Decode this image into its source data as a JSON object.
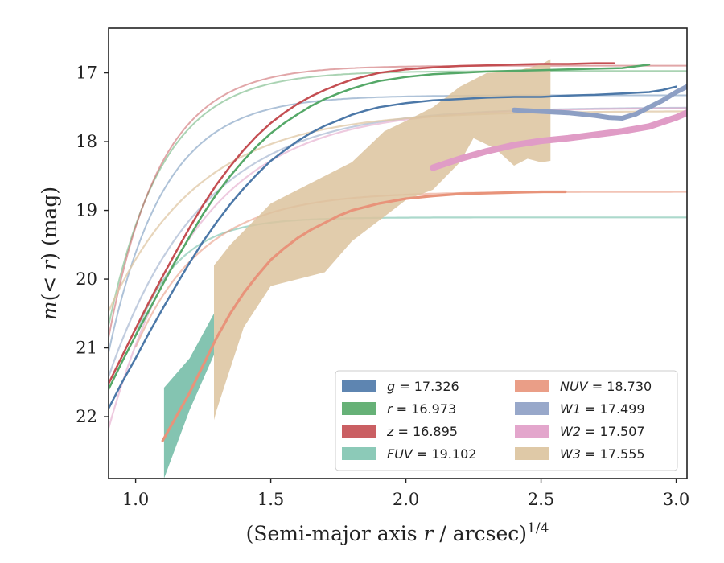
{
  "chart_data": {
    "type": "line",
    "xlabel": "(Semi-major axis r / arcsec)^{1/4}",
    "ylabel": "m(<r) (mag)",
    "xlim": [
      0.9,
      3.04
    ],
    "ylim": [
      22.9,
      16.35
    ],
    "y_inverted": true,
    "grid": false,
    "legend_position": "lower-right",
    "x_ticks": [
      {
        "value": 1.0,
        "label": "1.0"
      },
      {
        "value": 1.5,
        "label": "1.5"
      },
      {
        "value": 2.0,
        "label": "2.0"
      },
      {
        "value": 2.5,
        "label": "2.5"
      },
      {
        "value": 3.0,
        "label": "3.0"
      }
    ],
    "y_ticks": [
      {
        "value": 17,
        "label": "17"
      },
      {
        "value": 18,
        "label": "18"
      },
      {
        "value": 19,
        "label": "19"
      },
      {
        "value": 20,
        "label": "20"
      },
      {
        "value": 21,
        "label": "21"
      },
      {
        "value": 22,
        "label": "22"
      }
    ],
    "models": [
      {
        "series": "g",
        "color": "#4c78a8",
        "opacity": 0.45,
        "width": 2,
        "x0": 0.88,
        "m_inf": 17.326,
        "a": 4.55,
        "k": 4.9,
        "c": 0.86
      },
      {
        "series": "r",
        "color": "#55a868",
        "opacity": 0.5,
        "width": 2,
        "x0": 0.88,
        "m_inf": 16.973,
        "a": 4.52,
        "k": 5.0,
        "c": 0.86
      },
      {
        "series": "z",
        "color": "#c44e52",
        "opacity": 0.5,
        "width": 2,
        "x0": 0.88,
        "m_inf": 16.895,
        "a": 4.62,
        "k": 5.2,
        "c": 0.87
      },
      {
        "series": "FUV",
        "color": "#7fc4b0",
        "opacity": 0.65,
        "width": 2.2,
        "x0": 1.0,
        "m_inf": 19.102,
        "a": 11.0,
        "k": 6.2,
        "c": 0.7
      },
      {
        "series": "NUV",
        "color": "#e8937a",
        "opacity": 0.55,
        "width": 2.2,
        "x0": 1.0,
        "m_inf": 18.73,
        "a": 7.5,
        "k": 4.0,
        "c": 0.7
      },
      {
        "series": "W1",
        "color": "#9aabca",
        "opacity": 0.6,
        "width": 2.2,
        "x0": 0.9,
        "m_inf": 17.499,
        "a": 7.0,
        "k": 2.9,
        "c": 0.7
      },
      {
        "series": "W2",
        "color": "#e3a6c9",
        "opacity": 0.6,
        "width": 2.2,
        "x0": 0.9,
        "m_inf": 17.507,
        "a": 8.0,
        "k": 3.0,
        "c": 0.72
      },
      {
        "series": "W3",
        "color": "#dfc7a4",
        "opacity": 0.75,
        "width": 2.2,
        "x0": 0.9,
        "m_inf": 17.555,
        "a": 5.0,
        "k": 3.0,
        "c": 0.72
      }
    ],
    "bands": [
      {
        "series": "W3",
        "color": "#dcc39d",
        "opacity": 0.85,
        "upper": [
          [
            1.29,
            19.8
          ],
          [
            1.35,
            19.5
          ],
          [
            1.5,
            18.9
          ],
          [
            1.7,
            18.5
          ],
          [
            1.8,
            18.3
          ],
          [
            1.92,
            17.85
          ],
          [
            2.0,
            17.7
          ],
          [
            2.1,
            17.5
          ],
          [
            2.2,
            17.2
          ],
          [
            2.3,
            17.0
          ],
          [
            2.4,
            16.98
          ],
          [
            2.5,
            16.88
          ],
          [
            2.535,
            16.8
          ]
        ],
        "lower": [
          [
            2.535,
            18.28
          ],
          [
            2.5,
            18.3
          ],
          [
            2.45,
            18.25
          ],
          [
            2.4,
            18.35
          ],
          [
            2.33,
            18.1
          ],
          [
            2.25,
            17.95
          ],
          [
            2.2,
            18.3
          ],
          [
            2.1,
            18.7
          ],
          [
            2.0,
            18.85
          ],
          [
            1.9,
            19.15
          ],
          [
            1.8,
            19.45
          ],
          [
            1.7,
            19.9
          ],
          [
            1.6,
            20.0
          ],
          [
            1.5,
            20.1
          ],
          [
            1.4,
            20.7
          ],
          [
            1.3,
            21.9
          ],
          [
            1.29,
            22.05
          ]
        ]
      },
      {
        "series": "FUV",
        "color": "#6fbaa3",
        "opacity": 0.85,
        "upper": [
          [
            1.105,
            21.58
          ],
          [
            1.2,
            21.15
          ],
          [
            1.29,
            20.5
          ]
        ],
        "lower": [
          [
            1.29,
            21.1
          ],
          [
            1.2,
            21.9
          ],
          [
            1.105,
            22.9
          ]
        ]
      }
    ],
    "series": [
      {
        "name": "g",
        "label": "g = 17.326",
        "color": "#4c78a8",
        "width": 2.5,
        "x": [
          0.9,
          0.95,
          1.0,
          1.05,
          1.1,
          1.15,
          1.2,
          1.25,
          1.3,
          1.35,
          1.4,
          1.45,
          1.5,
          1.55,
          1.6,
          1.65,
          1.7,
          1.75,
          1.8,
          1.85,
          1.9,
          2.0,
          2.1,
          2.2,
          2.3,
          2.4,
          2.5,
          2.6,
          2.7,
          2.8,
          2.9,
          2.95,
          3.0
        ],
        "y": [
          21.88,
          21.5,
          21.15,
          20.78,
          20.43,
          20.09,
          19.76,
          19.45,
          19.17,
          18.91,
          18.68,
          18.47,
          18.28,
          18.13,
          17.99,
          17.87,
          17.77,
          17.69,
          17.61,
          17.55,
          17.5,
          17.44,
          17.4,
          17.38,
          17.36,
          17.35,
          17.35,
          17.33,
          17.32,
          17.3,
          17.28,
          17.25,
          17.2
        ]
      },
      {
        "name": "r",
        "label": "r = 16.973",
        "color": "#55a868",
        "width": 2.5,
        "x": [
          0.9,
          0.95,
          1.0,
          1.05,
          1.1,
          1.15,
          1.2,
          1.25,
          1.3,
          1.35,
          1.4,
          1.45,
          1.5,
          1.55,
          1.6,
          1.65,
          1.7,
          1.75,
          1.8,
          1.85,
          1.9,
          2.0,
          2.1,
          2.2,
          2.3,
          2.4,
          2.5,
          2.6,
          2.7,
          2.8,
          2.9
        ],
        "y": [
          21.6,
          21.2,
          20.82,
          20.45,
          20.08,
          19.72,
          19.38,
          19.05,
          18.76,
          18.5,
          18.27,
          18.06,
          17.88,
          17.73,
          17.6,
          17.48,
          17.38,
          17.3,
          17.23,
          17.17,
          17.12,
          17.06,
          17.02,
          17.0,
          16.98,
          16.97,
          16.96,
          16.95,
          16.94,
          16.93,
          16.88
        ]
      },
      {
        "name": "z",
        "label": "z = 16.895",
        "color": "#c44e52",
        "width": 2.5,
        "x": [
          0.9,
          0.95,
          1.0,
          1.05,
          1.1,
          1.15,
          1.2,
          1.25,
          1.3,
          1.35,
          1.4,
          1.45,
          1.5,
          1.55,
          1.6,
          1.65,
          1.7,
          1.75,
          1.8,
          1.85,
          1.9,
          2.0,
          2.1,
          2.2,
          2.3,
          2.4,
          2.5,
          2.6,
          2.7,
          2.77
        ],
        "y": [
          21.52,
          21.12,
          20.72,
          20.33,
          19.96,
          19.6,
          19.25,
          18.92,
          18.62,
          18.36,
          18.12,
          17.91,
          17.73,
          17.58,
          17.45,
          17.34,
          17.25,
          17.17,
          17.1,
          17.05,
          17.0,
          16.95,
          16.92,
          16.9,
          16.89,
          16.88,
          16.87,
          16.87,
          16.86,
          16.86
        ]
      },
      {
        "name": "FUV",
        "label": "FUV = 19.102",
        "color": "#7fc4b0",
        "width": 2.5,
        "x": [],
        "y": []
      },
      {
        "name": "NUV",
        "label": "NUV = 18.730",
        "color": "#e8937a",
        "width": 3.2,
        "x": [
          1.1,
          1.15,
          1.2,
          1.25,
          1.3,
          1.35,
          1.4,
          1.45,
          1.5,
          1.55,
          1.6,
          1.65,
          1.7,
          1.75,
          1.8,
          1.85,
          1.9,
          2.0,
          2.1,
          2.2,
          2.3,
          2.4,
          2.5,
          2.59
        ],
        "y": [
          22.35,
          22.0,
          21.65,
          21.25,
          20.85,
          20.5,
          20.2,
          19.95,
          19.72,
          19.55,
          19.4,
          19.28,
          19.18,
          19.08,
          19.0,
          18.95,
          18.9,
          18.83,
          18.79,
          18.76,
          18.75,
          18.74,
          18.73,
          18.73
        ]
      },
      {
        "name": "W1",
        "label": "W1 = 17.499",
        "color": "#8d9fc4",
        "width": 6,
        "x": [
          2.4,
          2.5,
          2.6,
          2.7,
          2.75,
          2.8,
          2.85,
          2.9,
          2.95,
          3.0,
          3.04
        ],
        "y": [
          17.54,
          17.56,
          17.58,
          17.62,
          17.65,
          17.66,
          17.6,
          17.5,
          17.4,
          17.28,
          17.2
        ]
      },
      {
        "name": "W2",
        "label": "W2 = 17.507",
        "color": "#e09cc6",
        "width": 8,
        "x": [
          2.1,
          2.2,
          2.3,
          2.4,
          2.5,
          2.6,
          2.7,
          2.8,
          2.9,
          3.0,
          3.04
        ],
        "y": [
          18.38,
          18.25,
          18.14,
          18.05,
          17.99,
          17.95,
          17.9,
          17.85,
          17.78,
          17.65,
          17.58
        ]
      },
      {
        "name": "W3",
        "label": "W3 = 17.555",
        "color": "#dcc39d",
        "width": 2.5,
        "x": [],
        "y": []
      }
    ]
  }
}
